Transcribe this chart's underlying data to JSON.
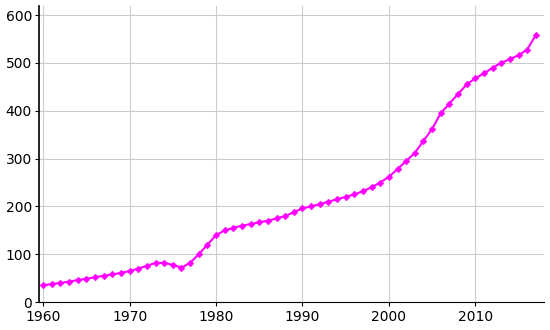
{
  "years": [
    1960,
    1961,
    1962,
    1963,
    1964,
    1965,
    1966,
    1967,
    1968,
    1969,
    1970,
    1971,
    1972,
    1973,
    1974,
    1975,
    1976,
    1977,
    1978,
    1979,
    1980,
    1981,
    1982,
    1983,
    1984,
    1985,
    1986,
    1987,
    1988,
    1989,
    1990,
    1991,
    1992,
    1993,
    1994,
    1995,
    1996,
    1997,
    1998,
    1999,
    2000,
    2001,
    2002,
    2003,
    2004,
    2005,
    2006,
    2007,
    2008,
    2009,
    2010,
    2011,
    2012,
    2013,
    2014,
    2015,
    2016,
    2017
  ],
  "population": [
    35,
    38,
    40,
    43,
    46,
    49,
    52,
    55,
    58,
    61,
    65,
    70,
    76,
    82,
    82,
    78,
    72,
    82,
    100,
    120,
    140,
    150,
    155,
    160,
    163,
    167,
    170,
    175,
    180,
    188,
    196,
    200,
    205,
    210,
    215,
    220,
    225,
    232,
    240,
    250,
    262,
    278,
    295,
    312,
    337,
    362,
    395,
    415,
    435,
    455,
    468,
    478,
    490,
    500,
    508,
    516,
    528,
    558
  ],
  "line_color": "#ff00ff",
  "marker": "D",
  "marker_size": 3.5,
  "line_width": 1.5,
  "xlim": [
    1959.5,
    2018
  ],
  "ylim": [
    0,
    620
  ],
  "yticks": [
    0,
    100,
    200,
    300,
    400,
    500,
    600
  ],
  "xticks": [
    1960,
    1970,
    1980,
    1990,
    2000,
    2010
  ],
  "grid_color": "#cccccc",
  "grid_linewidth": 0.8,
  "background_color": "#ffffff",
  "tick_label_fontsize": 10,
  "spine_color": "#000000",
  "left_spine_visible": true,
  "bottom_spine_visible": true
}
